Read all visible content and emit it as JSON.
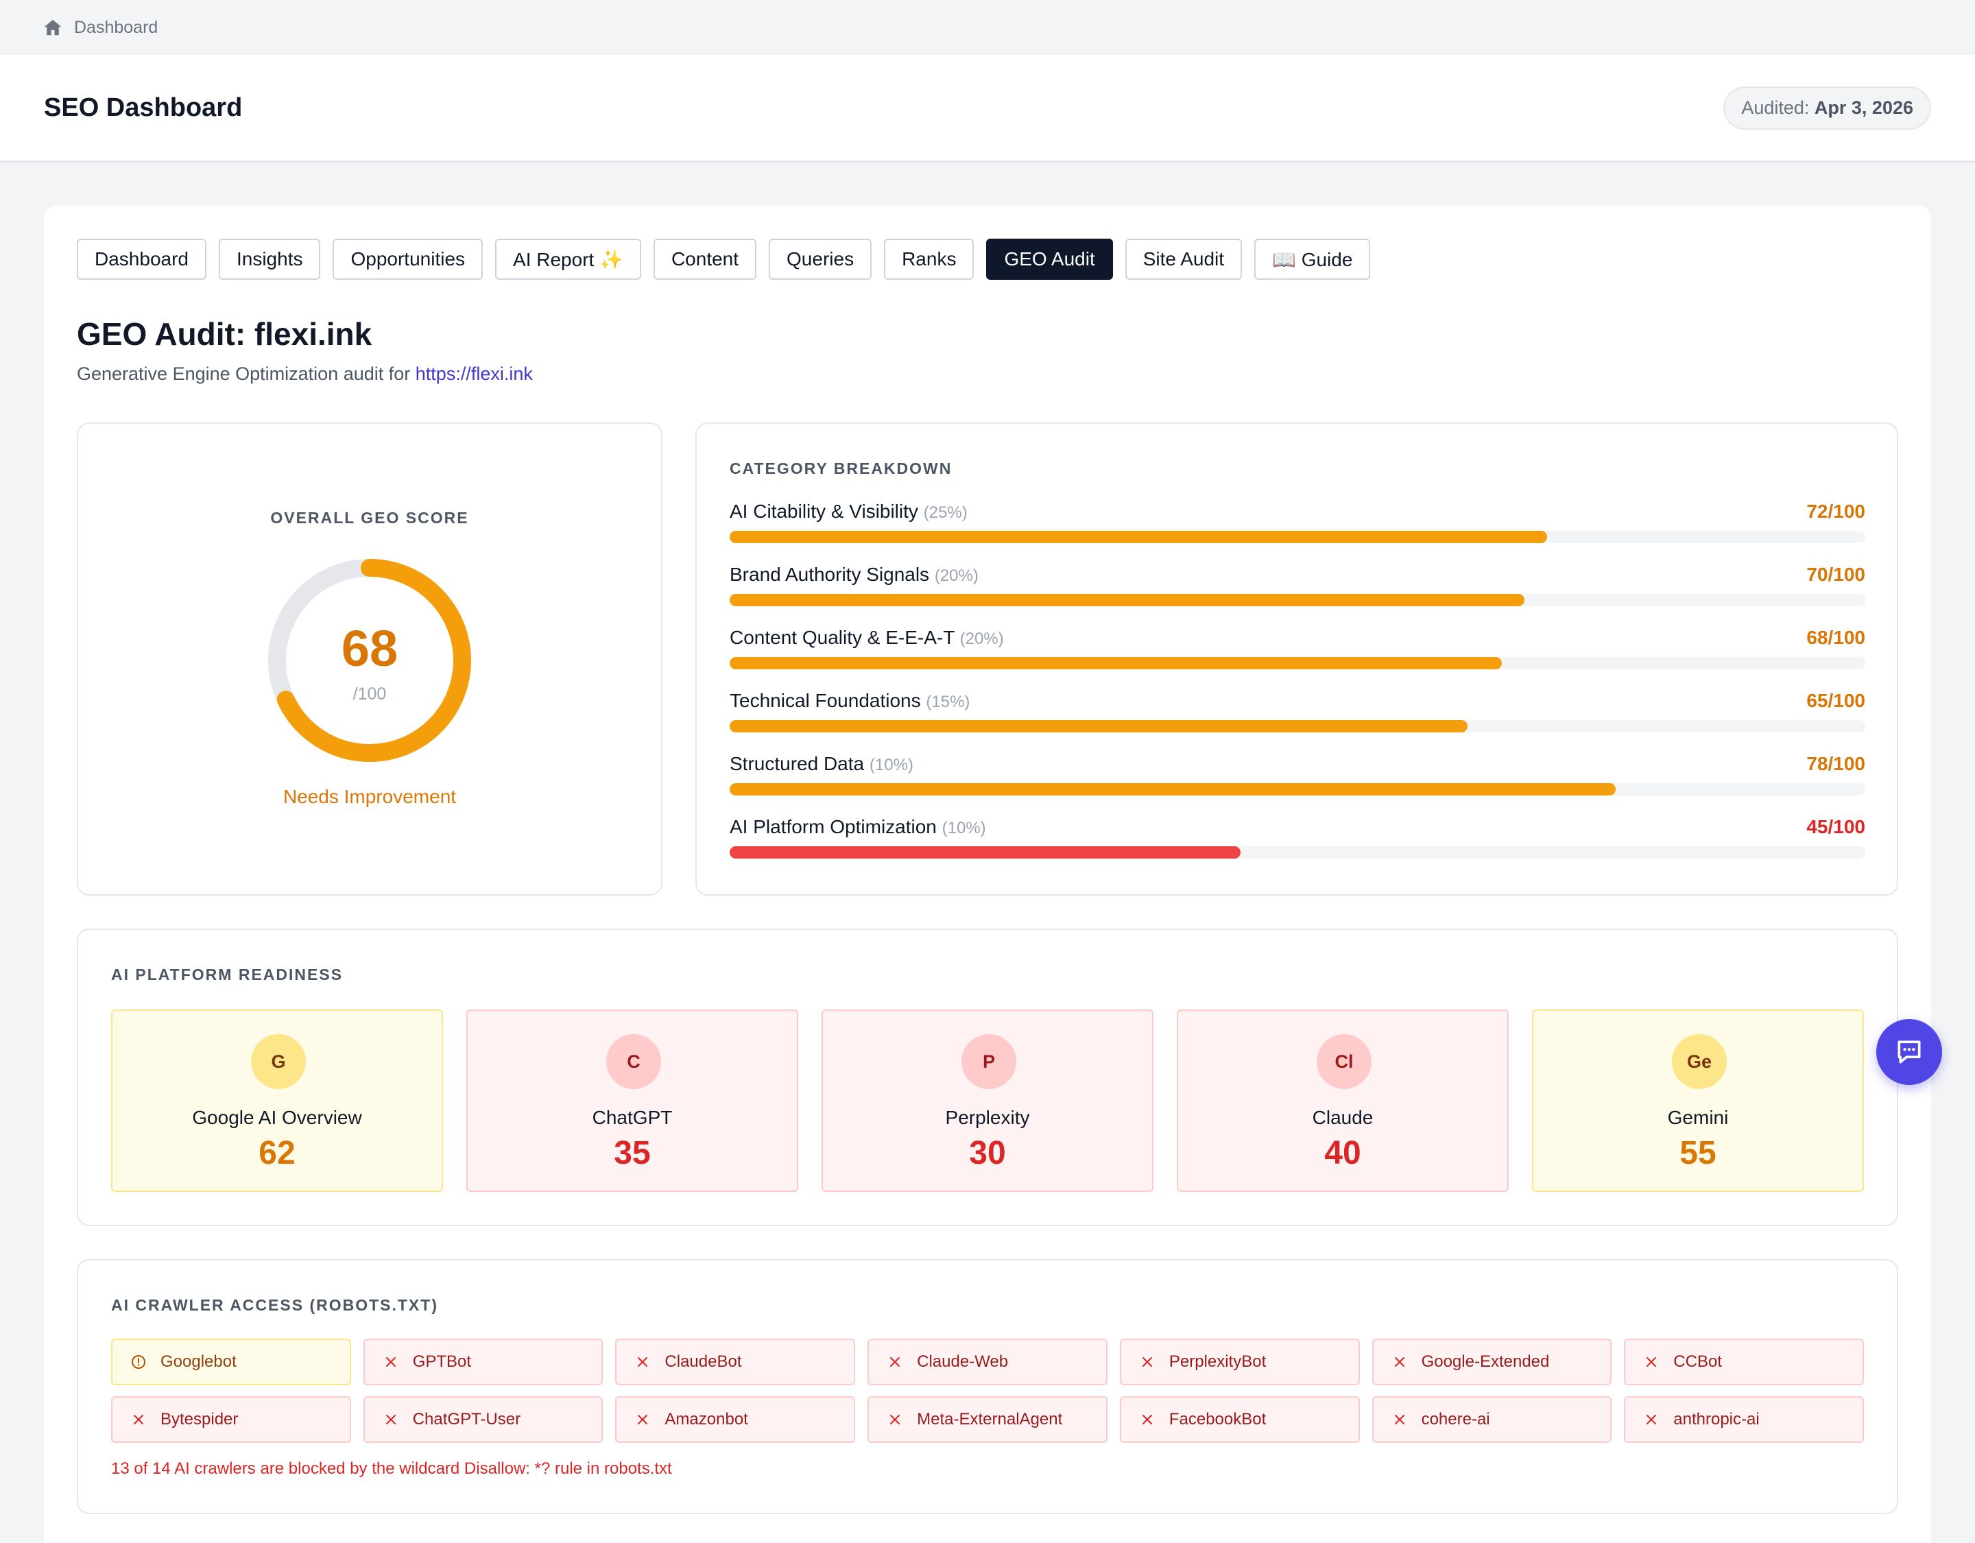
{
  "breadcrumb": {
    "icon": "home-icon",
    "label": "Dashboard"
  },
  "header": {
    "title": "SEO Dashboard",
    "audited_label": "Audited:",
    "audited_date": "Apr 3, 2026"
  },
  "tabs": [
    {
      "label": "Dashboard",
      "active": false
    },
    {
      "label": "Insights",
      "active": false
    },
    {
      "label": "Opportunities",
      "active": false
    },
    {
      "label": "AI Report ✨",
      "active": false
    },
    {
      "label": "Content",
      "active": false
    },
    {
      "label": "Queries",
      "active": false
    },
    {
      "label": "Ranks",
      "active": false
    },
    {
      "label": "GEO Audit",
      "active": true
    },
    {
      "label": "Site Audit",
      "active": false
    },
    {
      "label": "📖 Guide",
      "active": false
    }
  ],
  "page": {
    "title": "GEO Audit: flexi.ink",
    "subtitle": "Generative Engine Optimization audit for",
    "link": "https://flexi.ink"
  },
  "score": {
    "label": "OVERALL GEO SCORE",
    "value": "68",
    "denominator": "/100",
    "fraction": 0.68,
    "status": "Needs Improvement",
    "color": "#f59e0b"
  },
  "categories": {
    "label": "CATEGORY BREAKDOWN",
    "items": [
      {
        "name": "AI Citability & Visibility",
        "weight": "(25%)",
        "score": "72/100",
        "value": 72,
        "status": "warn"
      },
      {
        "name": "Brand Authority Signals",
        "weight": "(20%)",
        "score": "70/100",
        "value": 70,
        "status": "warn"
      },
      {
        "name": "Content Quality & E-E-A-T",
        "weight": "(20%)",
        "score": "68/100",
        "value": 68,
        "status": "warn"
      },
      {
        "name": "Technical Foundations",
        "weight": "(15%)",
        "score": "65/100",
        "value": 65,
        "status": "warn"
      },
      {
        "name": "Structured Data",
        "weight": "(10%)",
        "score": "78/100",
        "value": 78,
        "status": "warn"
      },
      {
        "name": "AI Platform Optimization",
        "weight": "(10%)",
        "score": "45/100",
        "value": 45,
        "status": "bad"
      }
    ]
  },
  "platforms": {
    "label": "AI PLATFORM READINESS",
    "items": [
      {
        "badge": "G",
        "name": "Google AI Overview",
        "score": "62",
        "tone": "yellow"
      },
      {
        "badge": "C",
        "name": "ChatGPT",
        "score": "35",
        "tone": "red"
      },
      {
        "badge": "P",
        "name": "Perplexity",
        "score": "30",
        "tone": "red"
      },
      {
        "badge": "Cl",
        "name": "Claude",
        "score": "40",
        "tone": "red"
      },
      {
        "badge": "Ge",
        "name": "Gemini",
        "score": "55",
        "tone": "yellow"
      }
    ]
  },
  "crawlers": {
    "label": "AI CRAWLER ACCESS (ROBOTS.TXT)",
    "items": [
      {
        "name": "Googlebot",
        "state": "warning"
      },
      {
        "name": "GPTBot",
        "state": "blocked"
      },
      {
        "name": "ClaudeBot",
        "state": "blocked"
      },
      {
        "name": "Claude-Web",
        "state": "blocked"
      },
      {
        "name": "PerplexityBot",
        "state": "blocked"
      },
      {
        "name": "Google-Extended",
        "state": "blocked"
      },
      {
        "name": "CCBot",
        "state": "blocked"
      },
      {
        "name": "Bytespider",
        "state": "blocked"
      },
      {
        "name": "ChatGPT-User",
        "state": "blocked"
      },
      {
        "name": "Amazonbot",
        "state": "blocked"
      },
      {
        "name": "Meta-ExternalAgent",
        "state": "blocked"
      },
      {
        "name": "FacebookBot",
        "state": "blocked"
      },
      {
        "name": "cohere-ai",
        "state": "blocked"
      },
      {
        "name": "anthropic-ai",
        "state": "blocked"
      }
    ],
    "note": "13 of 14 AI crawlers are blocked by the wildcard Disallow: *? rule in robots.txt"
  },
  "chat": {
    "icon": "chat-icon"
  }
}
